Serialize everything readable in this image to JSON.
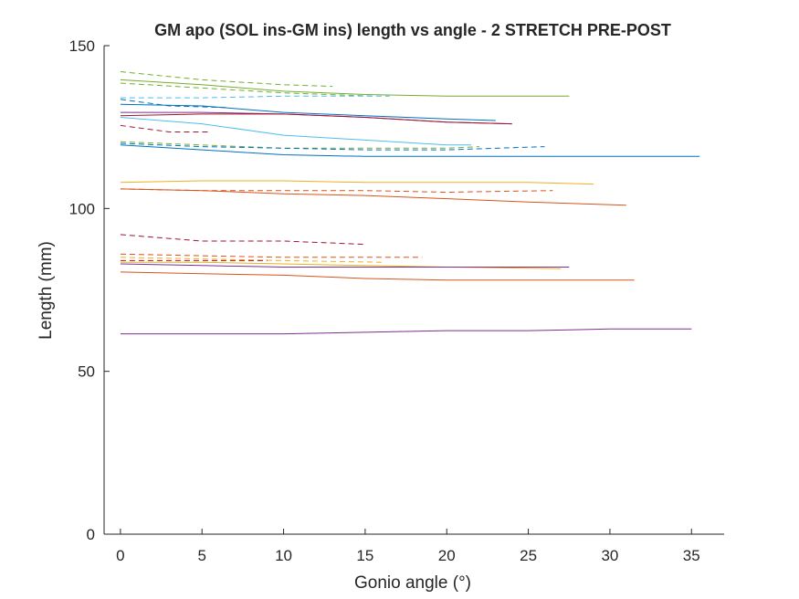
{
  "chart_data": {
    "type": "line",
    "title": "GM apo (SOL ins-GM ins) length vs angle - 2 STRETCH PRE-POST",
    "xlabel": "Gonio angle (°)",
    "ylabel": "Length (mm)",
    "xlim": [
      -1,
      37
    ],
    "ylim": [
      0,
      150
    ],
    "xticks": [
      0,
      5,
      10,
      15,
      20,
      25,
      30,
      35
    ],
    "yticks": [
      0,
      50,
      100,
      150
    ],
    "grid": false,
    "legend": "none",
    "series": [
      {
        "color": "#77AC30",
        "style": "dashed",
        "x": [
          0,
          5,
          10,
          13
        ],
        "y": [
          142.0,
          139.5,
          138.0,
          137.5
        ]
      },
      {
        "color": "#77AC30",
        "style": "solid",
        "x": [
          0,
          5,
          10,
          15,
          20,
          27.5
        ],
        "y": [
          139.5,
          138.0,
          136.0,
          135.0,
          134.5,
          134.5
        ]
      },
      {
        "color": "#77AC30",
        "style": "dashed",
        "x": [
          0,
          5,
          10,
          15.5
        ],
        "y": [
          138.5,
          137.0,
          135.5,
          134.5
        ]
      },
      {
        "color": "#4DBEEE",
        "style": "dashed",
        "x": [
          0,
          5,
          10,
          15,
          16.5
        ],
        "y": [
          134.0,
          134.0,
          134.5,
          134.5,
          134.5
        ]
      },
      {
        "color": "#0072BD",
        "style": "dashed",
        "x": [
          0,
          3,
          6.5
        ],
        "y": [
          133.5,
          131.5,
          131.0
        ]
      },
      {
        "color": "#0072BD",
        "style": "solid",
        "x": [
          0,
          5,
          10,
          15,
          20,
          23
        ],
        "y": [
          132.0,
          131.5,
          129.5,
          128.5,
          127.5,
          127.0
        ]
      },
      {
        "color": "#7E2F8E",
        "style": "solid",
        "x": [
          0,
          5,
          10,
          15,
          20,
          24
        ],
        "y": [
          129.5,
          129.5,
          129.0,
          128.0,
          126.5,
          126.0
        ]
      },
      {
        "color": "#A2142F",
        "style": "solid",
        "x": [
          0,
          5,
          10,
          15,
          20,
          24
        ],
        "y": [
          128.5,
          129.0,
          129.0,
          128.0,
          126.5,
          126.0
        ]
      },
      {
        "color": "#4DBEEE",
        "style": "solid",
        "x": [
          0,
          5,
          10,
          15,
          20,
          21.5
        ],
        "y": [
          128.0,
          126.0,
          122.5,
          121.0,
          119.5,
          119.5
        ]
      },
      {
        "color": "#A2142F",
        "style": "dashed",
        "x": [
          0,
          3,
          5.5
        ],
        "y": [
          125.5,
          123.5,
          123.5
        ]
      },
      {
        "color": "#77AC30",
        "style": "dashed",
        "x": [
          0,
          5,
          10,
          15,
          20,
          22
        ],
        "y": [
          120.5,
          119.5,
          118.5,
          118.5,
          118.5,
          119.0
        ]
      },
      {
        "color": "#0072BD",
        "style": "dashed",
        "x": [
          0,
          5,
          10,
          15,
          20,
          26
        ],
        "y": [
          120.0,
          119.0,
          118.5,
          118.0,
          118.0,
          119.0
        ]
      },
      {
        "color": "#0072BD",
        "style": "solid",
        "x": [
          0,
          5,
          10,
          15,
          20,
          25,
          30,
          35.5
        ],
        "y": [
          119.5,
          118.0,
          116.5,
          116.0,
          116.0,
          116.0,
          116.0,
          116.0
        ]
      },
      {
        "color": "#EDB120",
        "style": "solid",
        "x": [
          0,
          5,
          10,
          15,
          20,
          25,
          29
        ],
        "y": [
          108.0,
          108.5,
          108.5,
          108.0,
          108.0,
          108.0,
          107.5
        ]
      },
      {
        "color": "#D95319",
        "style": "dashed",
        "x": [
          0,
          5,
          10,
          15,
          20,
          26.5
        ],
        "y": [
          106.0,
          105.5,
          105.5,
          105.5,
          105.0,
          105.5
        ]
      },
      {
        "color": "#D95319",
        "style": "solid",
        "x": [
          0,
          5,
          10,
          15,
          20,
          25,
          31
        ],
        "y": [
          106.0,
          105.5,
          104.5,
          104.0,
          103.0,
          102.0,
          101.0
        ]
      },
      {
        "color": "#A2142F",
        "style": "dashed",
        "x": [
          0,
          5,
          10,
          15
        ],
        "y": [
          92.0,
          90.0,
          90.0,
          89.0
        ]
      },
      {
        "color": "#D95319",
        "style": "dashed",
        "x": [
          0,
          5,
          10,
          18.5
        ],
        "y": [
          86.0,
          85.5,
          85.0,
          85.0
        ]
      },
      {
        "color": "#EDB120",
        "style": "dashed",
        "x": [
          0,
          5,
          10,
          16
        ],
        "y": [
          85.0,
          84.5,
          84.0,
          83.5
        ]
      },
      {
        "color": "#A2142F",
        "style": "dashed",
        "x": [
          0,
          5,
          9
        ],
        "y": [
          84.0,
          84.0,
          84.0
        ]
      },
      {
        "color": "#EDB120",
        "style": "solid",
        "x": [
          0,
          5,
          10,
          15,
          20,
          27
        ],
        "y": [
          83.5,
          83.5,
          83.0,
          82.5,
          82.0,
          81.5
        ]
      },
      {
        "color": "#7E2F8E",
        "style": "solid",
        "x": [
          0,
          5,
          10,
          15,
          20,
          27.5
        ],
        "y": [
          83.0,
          82.5,
          82.0,
          82.0,
          82.0,
          82.0
        ]
      },
      {
        "color": "#D95319",
        "style": "solid",
        "x": [
          0,
          5,
          10,
          15,
          20,
          25,
          31.5
        ],
        "y": [
          80.5,
          80.0,
          79.5,
          78.5,
          78.0,
          78.0,
          78.0
        ]
      },
      {
        "color": "#7E2F8E",
        "style": "solid",
        "x": [
          0,
          5,
          10,
          15,
          20,
          25,
          30,
          35
        ],
        "y": [
          61.5,
          61.5,
          61.5,
          62.0,
          62.5,
          62.5,
          63.0,
          63.0
        ]
      }
    ]
  }
}
